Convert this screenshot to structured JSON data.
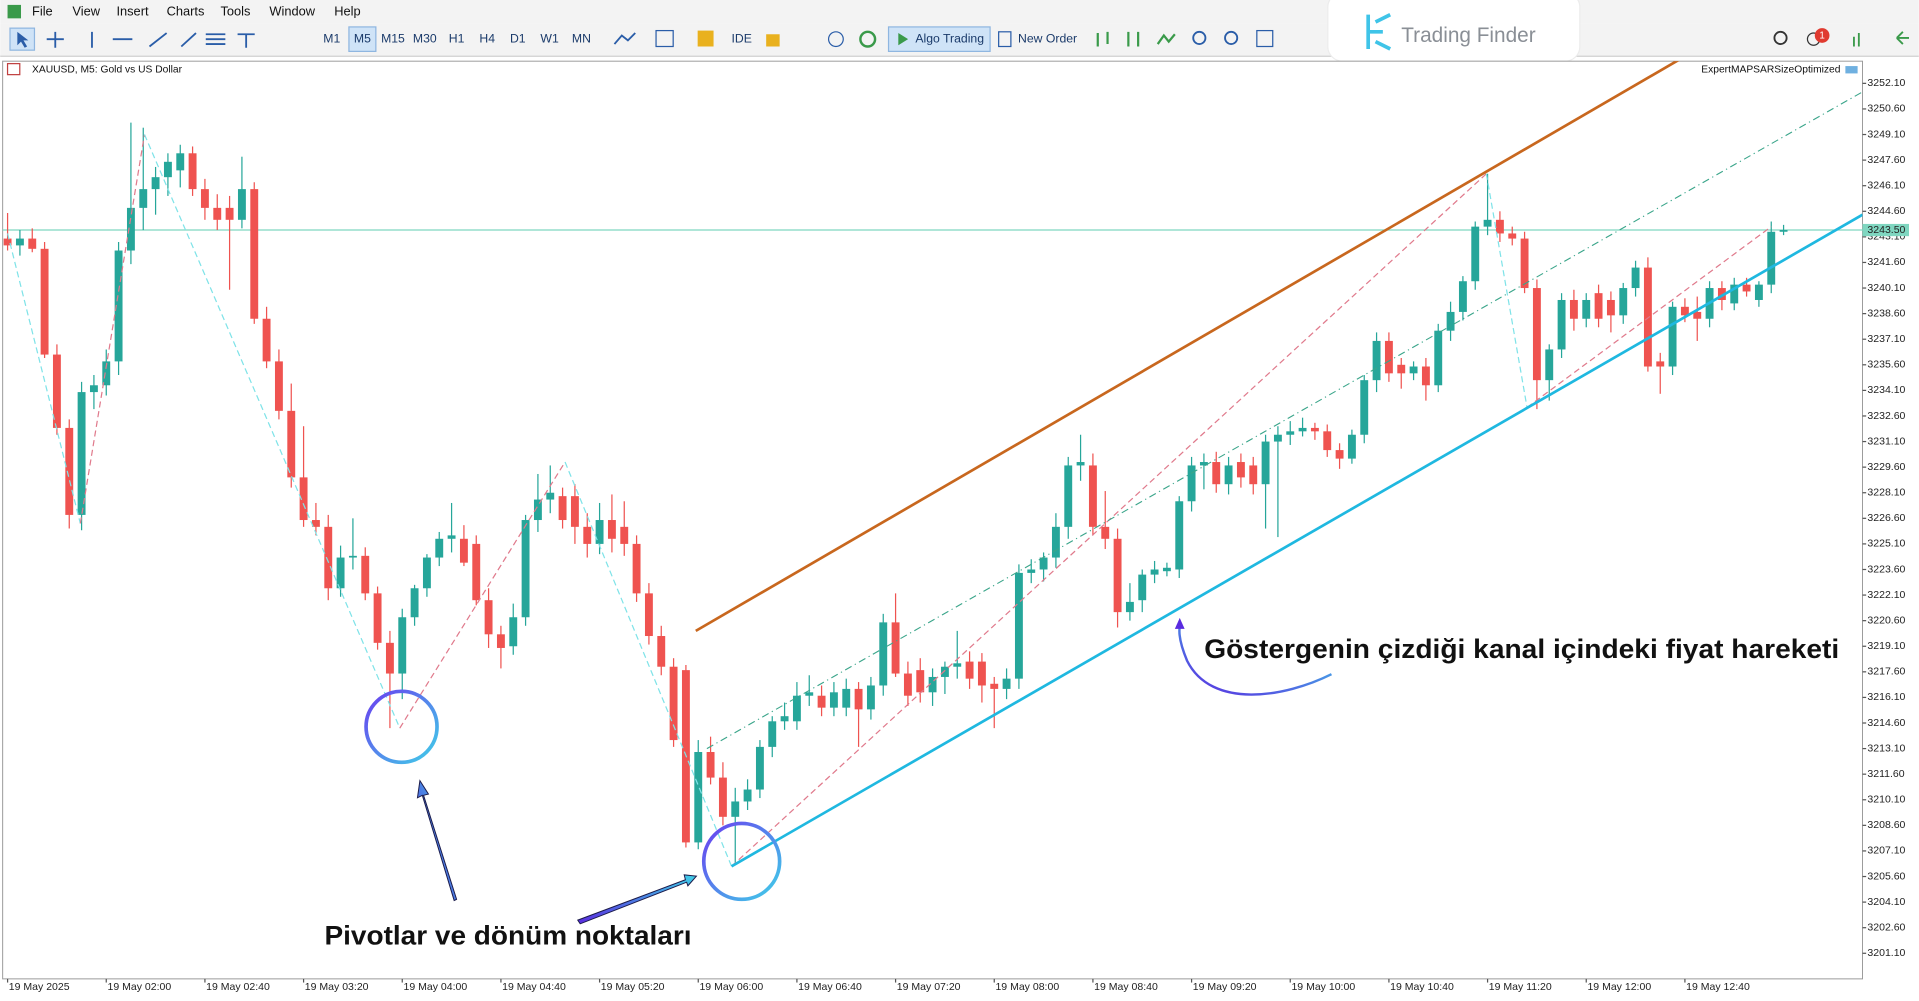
{
  "menu": [
    "File",
    "View",
    "Insert",
    "Charts",
    "Tools",
    "Window",
    "Help"
  ],
  "toolbar": {
    "timeframes": [
      "M1",
      "M5",
      "M15",
      "M30",
      "H1",
      "H4",
      "D1",
      "W1",
      "MN"
    ],
    "ide": "IDE",
    "algo_trading": "Algo Trading",
    "new_order": "New Order"
  },
  "logo": "Trading Finder",
  "badge": "1",
  "chart_data": {
    "type": "candlestick",
    "title": "XAUUSD, M5:  Gold vs US Dollar",
    "expert": "ExpertMAPSARSizeOptimized",
    "annotations": [
      "Göstergenin çizdiği kanal içindeki fiyat hareketi",
      "Pivotlar ve dönüm noktaları"
    ],
    "up_color": "#26a69a",
    "down_color": "#ef5350",
    "categories": [
      "19 May 2025",
      null,
      null,
      null,
      null,
      null,
      null,
      null,
      "19 May 02:00",
      null,
      null,
      null,
      null,
      null,
      null,
      null,
      "19 May 02:40",
      null,
      null,
      null,
      null,
      null,
      null,
      null,
      "19 May 03:20",
      null,
      null,
      null,
      null,
      null,
      null,
      null,
      "19 May 04:00",
      null,
      null,
      null,
      null,
      null,
      null,
      null,
      "19 May 04:40",
      null,
      null,
      null,
      null,
      null,
      null,
      null,
      "19 May 05:20",
      null,
      null,
      null,
      null,
      null,
      null,
      null,
      "19 May 06:00",
      null,
      null,
      null,
      null,
      null,
      null,
      null,
      "19 May 06:40",
      null,
      null,
      null,
      null,
      null,
      null,
      null,
      "19 May 07:20",
      null,
      null,
      null,
      null,
      null,
      null,
      null,
      "19 May 08:00",
      null,
      null,
      null,
      null,
      null,
      null,
      null,
      "19 May 08:40",
      null,
      null,
      null,
      null,
      null,
      null,
      null,
      "19 May 09:20",
      null,
      null,
      null,
      null,
      null,
      null,
      null,
      "19 May 10:00",
      null,
      null,
      null,
      null,
      null,
      null,
      null,
      "19 May 10:40",
      null,
      null,
      null,
      null,
      null,
      null,
      null,
      "19 May 11:20",
      null,
      null,
      null,
      null,
      null,
      null,
      null,
      "19 May 12:00",
      null,
      null,
      null,
      null,
      null,
      null,
      null,
      "19 May 12:40",
      null,
      null,
      null,
      null,
      null,
      null,
      null,
      null
    ],
    "open": [
      3243.0,
      3242.6,
      3243.0,
      3242.4,
      3236.2,
      3231.9,
      3226.8,
      3234.0,
      3234.4,
      3235.8,
      3242.3,
      3244.8,
      3245.9,
      3246.6,
      3247.0,
      3248.0,
      3245.9,
      3244.8,
      3244.8,
      3244.1,
      3245.9,
      3238.3,
      3235.8,
      3232.9,
      3229.0,
      3226.5,
      3226.1,
      3222.5,
      3224.3,
      3224.4,
      3222.2,
      3219.3,
      3217.5,
      3220.8,
      3222.5,
      3224.3,
      3225.4,
      3225.4,
      3225.1,
      3221.8,
      3219.8,
      3219.1,
      3220.8,
      3226.5,
      3227.7,
      3227.9,
      3227.9,
      3226.1,
      3225.1,
      3226.5,
      3226.1,
      3225.1,
      3222.2,
      3219.7,
      3217.9,
      3217.7,
      3207.6,
      3212.9,
      3211.4,
      3209.1,
      3210.0,
      3210.7,
      3213.2,
      3214.7,
      3214.7,
      3216.2,
      3216.2,
      3215.5,
      3215.5,
      3216.6,
      3215.4,
      3216.8,
      3220.5,
      3217.5,
      3217.7,
      3216.4,
      3217.3,
      3217.9,
      3218.2,
      3218.2,
      3216.9,
      3216.6,
      3217.2,
      3223.4,
      3223.6,
      3224.3,
      3226.1,
      3229.7,
      3229.7,
      3226.1,
      3225.4,
      3221.1,
      3221.8,
      3223.3,
      3223.5,
      3223.6,
      3227.6,
      3229.7,
      3229.9,
      3228.6,
      3229.9,
      3229.7,
      3228.6,
      3231.1,
      3231.5,
      3231.7,
      3231.9,
      3231.7,
      3230.6,
      3230.1,
      3231.5,
      3234.7,
      3237.0,
      3235.6,
      3235.1,
      3235.5,
      3234.4,
      3237.6,
      3238.7,
      3240.5,
      3243.7,
      3244.1,
      3243.3,
      3243.0,
      3240.1,
      3234.7,
      3236.5,
      3239.4,
      3238.3,
      3239.8,
      3239.4,
      3238.5,
      3240.1,
      3241.3,
      3235.8,
      3235.5,
      3239.0,
      3238.7,
      3238.3,
      3240.1,
      3239.2,
      3240.3,
      3239.4,
      3240.3,
      3243.4
    ],
    "high": [
      3244.5,
      3243.5,
      3243.6,
      3242.8,
      3236.8,
      3232.4,
      3234.6,
      3235.0,
      3236.5,
      3242.8,
      3249.8,
      3249.5,
      3247.2,
      3248.0,
      3248.5,
      3248.4,
      3246.5,
      3245.6,
      3245.5,
      3247.8,
      3246.3,
      3239.0,
      3236.5,
      3234.5,
      3232.0,
      3227.5,
      3226.8,
      3225.0,
      3226.6,
      3224.9,
      3222.6,
      3220.0,
      3221.3,
      3222.7,
      3224.5,
      3225.8,
      3227.5,
      3226.2,
      3225.6,
      3222.5,
      3220.3,
      3221.6,
      3226.8,
      3229.2,
      3229.7,
      3228.4,
      3228.6,
      3226.9,
      3227.5,
      3228.0,
      3227.6,
      3225.6,
      3222.8,
      3220.3,
      3218.4,
      3218.0,
      3213.6,
      3213.8,
      3212.3,
      3210.8,
      3211.3,
      3213.6,
      3215.0,
      3215.8,
      3217.0,
      3217.4,
      3216.8,
      3217.0,
      3217.2,
      3217.0,
      3217.3,
      3221.0,
      3222.2,
      3218.2,
      3218.4,
      3217.8,
      3218.2,
      3220.0,
      3218.8,
      3218.7,
      3217.3,
      3217.8,
      3223.9,
      3224.2,
      3224.6,
      3226.9,
      3230.2,
      3231.5,
      3230.4,
      3228.2,
      3226.0,
      3222.8,
      3223.6,
      3224.1,
      3224.0,
      3227.9,
      3230.2,
      3230.4,
      3230.5,
      3230.2,
      3230.4,
      3230.2,
      3231.5,
      3232.0,
      3232.3,
      3232.5,
      3232.2,
      3232.1,
      3231.0,
      3231.8,
      3235.0,
      3237.5,
      3237.5,
      3236.0,
      3235.8,
      3236.0,
      3238.0,
      3239.3,
      3240.8,
      3244.0,
      3246.8,
      3244.6,
      3243.7,
      3243.4,
      3240.6,
      3236.8,
      3239.8,
      3240.0,
      3239.8,
      3240.3,
      3239.9,
      3240.4,
      3241.7,
      3241.9,
      3236.3,
      3239.3,
      3239.5,
      3239.6,
      3240.5,
      3240.5,
      3240.7,
      3240.7,
      3240.5,
      3244.0,
      3243.8
    ],
    "low": [
      3242.3,
      3242.0,
      3242.2,
      3236.0,
      3231.5,
      3226.0,
      3225.9,
      3233.0,
      3233.8,
      3235.0,
      3241.5,
      3243.5,
      3244.4,
      3245.5,
      3246.0,
      3245.5,
      3244.1,
      3243.5,
      3240.0,
      3243.6,
      3238.0,
      3235.4,
      3232.4,
      3228.4,
      3226.1,
      3225.6,
      3221.8,
      3222.0,
      3223.6,
      3221.8,
      3218.9,
      3214.3,
      3216.0,
      3220.3,
      3222.0,
      3223.8,
      3224.6,
      3223.8,
      3221.5,
      3219.0,
      3217.8,
      3218.6,
      3220.3,
      3225.8,
      3226.9,
      3226.0,
      3225.1,
      3224.3,
      3224.5,
      3224.6,
      3224.4,
      3221.7,
      3219.2,
      3217.4,
      3213.2,
      3207.3,
      3207.2,
      3211.0,
      3208.6,
      3206.3,
      3209.5,
      3210.2,
      3212.6,
      3214.2,
      3214.2,
      3215.6,
      3215.0,
      3215.0,
      3215.0,
      3213.2,
      3214.8,
      3216.2,
      3217.3,
      3215.6,
      3215.8,
      3215.6,
      3216.3,
      3217.2,
      3216.6,
      3215.8,
      3214.3,
      3216.0,
      3216.6,
      3222.8,
      3222.9,
      3223.7,
      3225.4,
      3228.8,
      3225.6,
      3224.8,
      3220.2,
      3220.6,
      3221.1,
      3222.8,
      3223.2,
      3223.1,
      3227.0,
      3228.3,
      3228.1,
      3228.0,
      3228.4,
      3228.0,
      3226.0,
      3225.5,
      3230.9,
      3231.4,
      3231.2,
      3230.2,
      3229.5,
      3229.8,
      3231.0,
      3234.0,
      3234.6,
      3234.2,
      3234.7,
      3233.5,
      3234.0,
      3237.0,
      3238.2,
      3240.0,
      3243.2,
      3242.8,
      3242.6,
      3239.8,
      3233.0,
      3233.5,
      3236.0,
      3237.6,
      3237.8,
      3237.8,
      3237.5,
      3238.0,
      3239.6,
      3235.2,
      3233.9,
      3235.0,
      3238.1,
      3237.0,
      3237.8,
      3238.8,
      3238.8,
      3239.6,
      3239.0,
      3239.8,
      3243.2
    ],
    "close": [
      3242.6,
      3243.0,
      3242.4,
      3236.2,
      3231.9,
      3226.8,
      3234.0,
      3234.4,
      3235.8,
      3242.3,
      3244.8,
      3245.9,
      3246.6,
      3247.5,
      3248.0,
      3245.9,
      3244.8,
      3244.1,
      3244.1,
      3245.9,
      3238.3,
      3235.8,
      3232.9,
      3229.0,
      3226.5,
      3226.1,
      3222.5,
      3224.3,
      3224.4,
      3222.2,
      3219.3,
      3217.5,
      3220.8,
      3222.5,
      3224.3,
      3225.4,
      3225.6,
      3224.0,
      3221.8,
      3219.8,
      3219.0,
      3220.8,
      3226.5,
      3227.7,
      3228.1,
      3226.5,
      3226.1,
      3225.1,
      3226.5,
      3225.4,
      3225.1,
      3222.2,
      3219.7,
      3217.9,
      3213.6,
      3207.6,
      3212.9,
      3211.4,
      3209.1,
      3210.0,
      3210.7,
      3213.2,
      3214.7,
      3215.0,
      3216.2,
      3216.4,
      3215.5,
      3216.4,
      3216.6,
      3215.4,
      3216.8,
      3220.5,
      3217.5,
      3216.2,
      3216.4,
      3217.3,
      3217.9,
      3218.1,
      3217.2,
      3216.8,
      3216.6,
      3217.2,
      3223.4,
      3223.6,
      3224.3,
      3226.1,
      3229.7,
      3229.9,
      3226.1,
      3225.4,
      3221.1,
      3221.7,
      3223.3,
      3223.6,
      3223.7,
      3227.6,
      3229.7,
      3229.9,
      3228.6,
      3229.7,
      3229.0,
      3228.6,
      3231.1,
      3231.5,
      3231.7,
      3231.9,
      3231.7,
      3230.6,
      3230.1,
      3231.5,
      3234.7,
      3237.0,
      3235.1,
      3235.1,
      3235.5,
      3234.4,
      3237.6,
      3238.7,
      3240.5,
      3243.7,
      3244.1,
      3243.3,
      3243.0,
      3240.1,
      3234.7,
      3236.5,
      3239.4,
      3238.3,
      3239.4,
      3238.3,
      3238.5,
      3240.1,
      3241.3,
      3235.5,
      3235.5,
      3239.0,
      3238.5,
      3238.3,
      3240.1,
      3239.4,
      3240.3,
      3239.9,
      3240.3,
      3243.4,
      3243.5
    ],
    "xlim": [
      -0.4,
      150.4
    ],
    "ylim": [
      3199.6,
      3253.4
    ],
    "yticks": [
      {
        "value": 3252.1,
        "label": "3252.10"
      },
      {
        "value": 3250.6,
        "label": "3250.60"
      },
      {
        "value": 3249.1,
        "label": "3249.10"
      },
      {
        "value": 3247.6,
        "label": "3247.60"
      },
      {
        "value": 3246.1,
        "label": "3246.10"
      },
      {
        "value": 3244.6,
        "label": "3244.60"
      },
      {
        "value": 3243.1,
        "label": "3243.10"
      },
      {
        "value": 3241.6,
        "label": "3241.60"
      },
      {
        "value": 3240.1,
        "label": "3240.10"
      },
      {
        "value": 3238.6,
        "label": "3238.60"
      },
      {
        "value": 3237.1,
        "label": "3237.10"
      },
      {
        "value": 3235.6,
        "label": "3235.60"
      },
      {
        "value": 3234.1,
        "label": "3234.10"
      },
      {
        "value": 3232.6,
        "label": "3232.60"
      },
      {
        "value": 3231.1,
        "label": "3231.10"
      },
      {
        "value": 3229.6,
        "label": "3229.60"
      },
      {
        "value": 3228.1,
        "label": "3228.10"
      },
      {
        "value": 3226.6,
        "label": "3226.60"
      },
      {
        "value": 3225.1,
        "label": "3225.10"
      },
      {
        "value": 3223.6,
        "label": "3223.60"
      },
      {
        "value": 3222.1,
        "label": "3222.10"
      },
      {
        "value": 3220.6,
        "label": "3220.60"
      },
      {
        "value": 3219.1,
        "label": "3219.10"
      },
      {
        "value": 3217.6,
        "label": "3217.60"
      },
      {
        "value": 3216.1,
        "label": "3216.10"
      },
      {
        "value": 3214.6,
        "label": "3214.60"
      },
      {
        "value": 3213.1,
        "label": "3213.10"
      },
      {
        "value": 3211.6,
        "label": "3211.60"
      },
      {
        "value": 3210.1,
        "label": "3210.10"
      },
      {
        "value": 3208.6,
        "label": "3208.60"
      },
      {
        "value": 3207.1,
        "label": "3207.10"
      },
      {
        "value": 3205.6,
        "label": "3205.60"
      },
      {
        "value": 3204.1,
        "label": "3204.10"
      },
      {
        "value": 3202.6,
        "label": "3202.60"
      },
      {
        "value": 3201.1,
        "label": "3201.10"
      }
    ],
    "last_price": {
      "value": 3243.5,
      "label": "3243.50"
    },
    "last_price_color": "#7fd6c0",
    "channel": [
      {
        "color": "#c8671e",
        "x": [
          55.8,
          135.8
        ],
        "y": [
          3220.0,
          3253.6
        ]
      },
      {
        "color": "#1fb8e0",
        "x": [
          58.7,
          150.4
        ],
        "y": [
          3206.2,
          3244.4
        ]
      },
      {
        "color": "#3aa58a",
        "x": [
          56.7,
          150.4
        ],
        "y": [
          3213.1,
          3251.6
        ]
      }
    ],
    "zigzag": {
      "up_color": "#e07a8c",
      "down_color": "#7fe3e8",
      "x": [
        0,
        5.9,
        11.1,
        31.8,
        45.2,
        58.7,
        119.9,
        123.2,
        143
      ],
      "y": [
        3243.3,
        3226.3,
        3249.1,
        3214.3,
        3229.9,
        3206.2,
        3246.8,
        3233.1,
        3243.7
      ]
    }
  }
}
